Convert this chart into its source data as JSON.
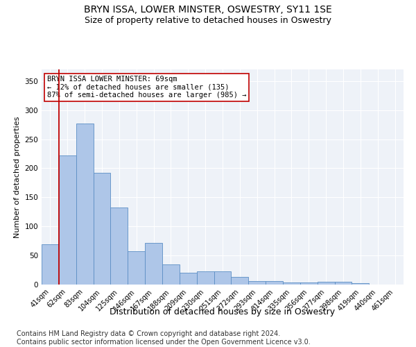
{
  "title1": "BRYN ISSA, LOWER MINSTER, OSWESTRY, SY11 1SE",
  "title2": "Size of property relative to detached houses in Oswestry",
  "xlabel": "Distribution of detached houses by size in Oswestry",
  "ylabel": "Number of detached properties",
  "categories": [
    "41sqm",
    "62sqm",
    "83sqm",
    "104sqm",
    "125sqm",
    "146sqm",
    "167sqm",
    "188sqm",
    "209sqm",
    "230sqm",
    "251sqm",
    "272sqm",
    "293sqm",
    "314sqm",
    "335sqm",
    "356sqm",
    "377sqm",
    "398sqm",
    "419sqm",
    "440sqm",
    "461sqm"
  ],
  "values": [
    69,
    222,
    277,
    192,
    132,
    57,
    72,
    35,
    20,
    23,
    23,
    13,
    6,
    6,
    3,
    4,
    5,
    5,
    2,
    0,
    0
  ],
  "bar_color": "#aec6e8",
  "bar_edge_color": "#5b8ec4",
  "annotation_text": "BRYN ISSA LOWER MINSTER: 69sqm\n← 12% of detached houses are smaller (135)\n87% of semi-detached houses are larger (985) →",
  "vline_x": 0.5,
  "vline_color": "#c00000",
  "box_facecolor": "white",
  "box_edgecolor": "#c00000",
  "ylim": [
    0,
    370
  ],
  "yticks": [
    0,
    50,
    100,
    150,
    200,
    250,
    300,
    350
  ],
  "footnote": "Contains HM Land Registry data © Crown copyright and database right 2024.\nContains public sector information licensed under the Open Government Licence v3.0.",
  "title1_fontsize": 10,
  "title2_fontsize": 9,
  "xlabel_fontsize": 9,
  "ylabel_fontsize": 8,
  "annotation_fontsize": 7.5,
  "footnote_fontsize": 7,
  "background_color": "#eef2f8"
}
